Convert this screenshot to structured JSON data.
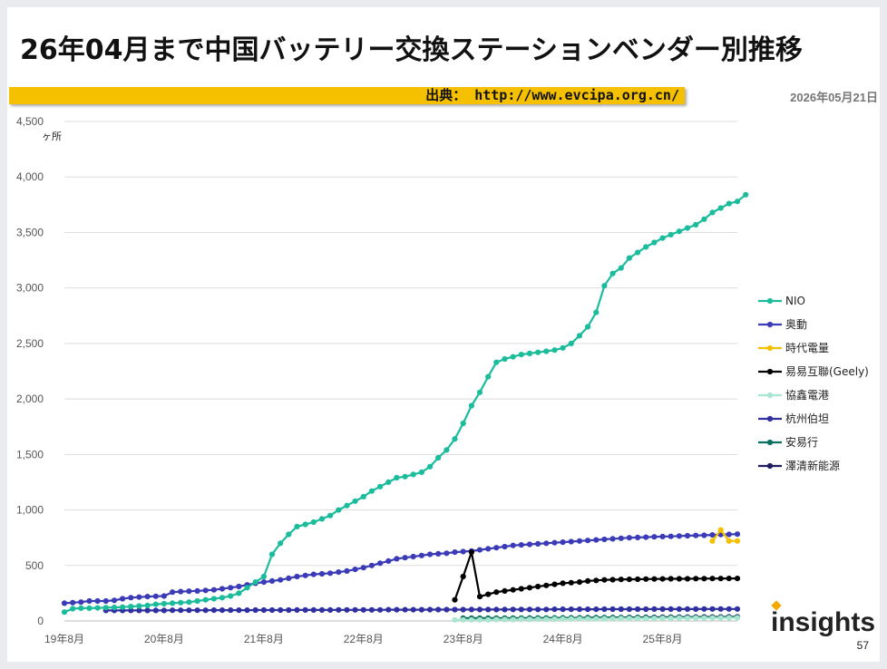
{
  "title": "26年04月まで中国バッテリー交換ステーションベンダー別推移",
  "source_label": "出典： http://www.evcipa.org.cn/",
  "date": "2026年05月21日",
  "logo_text": "insights",
  "page_number": "57",
  "chart_data": {
    "type": "line",
    "ylabel": "ヶ所",
    "ylim": [
      0,
      4500
    ],
    "y_ticks": [
      "0",
      "500",
      "1,000",
      "1,500",
      "2,000",
      "2,500",
      "3,000",
      "3,500",
      "4,000",
      "4,500"
    ],
    "x_tick_labels": [
      {
        "label": "19年8月",
        "month": 0
      },
      {
        "label": "20年8月",
        "month": 12
      },
      {
        "label": "21年8月",
        "month": 24
      },
      {
        "label": "22年8月",
        "month": 36
      },
      {
        "label": "23年8月",
        "month": 48
      },
      {
        "label": "24年8月",
        "month": 60
      },
      {
        "label": "25年8月",
        "month": 72
      }
    ],
    "x_range": [
      0,
      81
    ],
    "grid": true,
    "legend_position": "right",
    "series": [
      {
        "name": "NIO",
        "color": "#1abc9c",
        "start": 0,
        "values": [
          80,
          110,
          115,
          115,
          118,
          120,
          122,
          125,
          130,
          135,
          140,
          150,
          155,
          160,
          165,
          170,
          180,
          190,
          200,
          210,
          225,
          250,
          300,
          350,
          400,
          600,
          700,
          780,
          850,
          870,
          890,
          920,
          950,
          1000,
          1040,
          1080,
          1120,
          1170,
          1210,
          1250,
          1290,
          1300,
          1320,
          1340,
          1390,
          1470,
          1540,
          1640,
          1780,
          1940,
          2060,
          2200,
          2330,
          2360,
          2380,
          2400,
          2410,
          2420,
          2430,
          2440,
          2460,
          2500,
          2570,
          2650,
          2780,
          3020,
          3130,
          3180,
          3270,
          3320,
          3370,
          3410,
          3450,
          3480,
          3510,
          3540,
          3570,
          3620,
          3680,
          3720,
          3760,
          3780,
          3840
        ]
      },
      {
        "name": "奥動",
        "color": "#3b3bb8",
        "start": 0,
        "values": [
          160,
          165,
          170,
          180,
          180,
          180,
          185,
          200,
          210,
          215,
          220,
          222,
          225,
          260,
          265,
          268,
          270,
          275,
          280,
          290,
          300,
          310,
          325,
          340,
          350,
          360,
          370,
          385,
          400,
          410,
          420,
          425,
          430,
          440,
          450,
          465,
          480,
          500,
          520,
          540,
          560,
          570,
          580,
          590,
          600,
          605,
          610,
          620,
          625,
          630,
          640,
          650,
          660,
          670,
          680,
          685,
          690,
          695,
          700,
          705,
          710,
          715,
          720,
          725,
          730,
          735,
          740,
          745,
          750,
          752,
          755,
          758,
          760,
          762,
          765,
          768,
          770,
          772,
          775,
          778,
          780,
          782
        ]
      },
      {
        "name": "時代電量",
        "color": "#f5c000",
        "start": 78,
        "values": [
          720,
          820,
          720,
          720
        ]
      },
      {
        "name": "易易互聯(Geely)",
        "color": "#000000",
        "start": 47,
        "values": [
          190,
          400,
          620,
          220,
          240,
          260,
          270,
          280,
          290,
          300,
          310,
          320,
          330,
          340,
          345,
          350,
          360,
          365,
          370,
          372,
          374,
          375,
          376,
          377,
          378,
          379,
          380,
          380,
          380,
          381,
          381,
          382,
          382,
          383,
          383
        ]
      },
      {
        "name": "協鑫電港",
        "color": "#a8e6cf",
        "start": 47,
        "values": [
          10,
          10,
          10,
          10,
          10,
          12,
          12,
          12,
          14,
          14,
          15,
          15,
          16,
          16,
          17,
          18,
          18,
          19,
          20,
          20,
          21,
          21,
          22,
          22,
          23,
          24,
          24,
          25,
          25,
          26,
          26,
          27,
          27,
          28,
          28
        ]
      },
      {
        "name": "杭州伯坦",
        "color": "#2f2fa0",
        "start": 5,
        "values": [
          95,
          95,
          95,
          95,
          95,
          95,
          95,
          95,
          96,
          96,
          96,
          96,
          96,
          97,
          97,
          97,
          97,
          97,
          98,
          98,
          98,
          98,
          98,
          99,
          99,
          99,
          99,
          99,
          100,
          100,
          100,
          100,
          100,
          100,
          101,
          101,
          101,
          101,
          101,
          102,
          102,
          102,
          102,
          102,
          103,
          103,
          103,
          103,
          103,
          104,
          104,
          104,
          104,
          104,
          105,
          105,
          105,
          105,
          105,
          105,
          106,
          106,
          106,
          106,
          106,
          106,
          107,
          107,
          107,
          107,
          107,
          107,
          108,
          108,
          108,
          108,
          108
        ]
      },
      {
        "name": "安易行",
        "color": "#0b6e5f",
        "start": 48,
        "values": [
          25,
          25,
          25,
          25,
          26,
          26,
          26,
          26,
          27,
          27,
          27,
          27,
          28,
          28,
          28,
          28,
          29,
          29,
          29,
          29,
          30,
          30,
          30,
          30,
          30,
          31,
          31,
          31,
          31,
          31,
          32,
          32,
          32,
          32
        ]
      },
      {
        "name": "澤清新能源",
        "color": "#1c1c5e",
        "start": 49,
        "values": [
          15,
          16,
          17,
          18,
          19,
          20,
          21,
          22,
          23,
          24,
          25,
          26,
          27,
          28,
          29,
          30,
          30,
          31,
          31,
          32,
          32,
          33,
          33,
          34,
          34,
          35,
          35,
          35,
          36,
          36,
          36,
          37,
          37
        ]
      }
    ]
  }
}
